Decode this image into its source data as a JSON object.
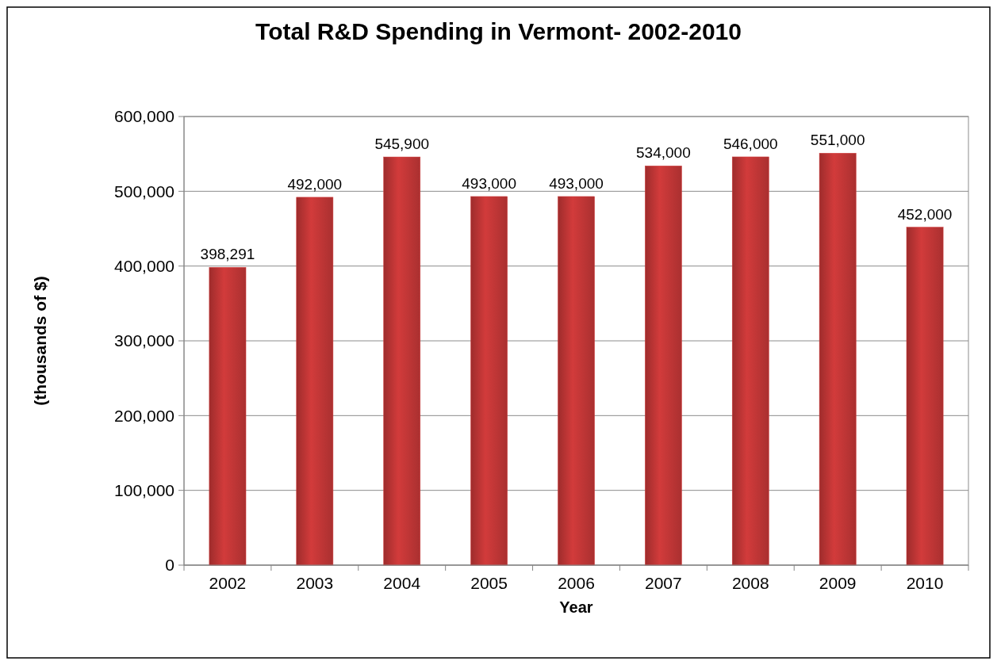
{
  "chart_data": {
    "type": "bar",
    "title": "Total R&D  Spending  in Vermont- 2002-2010",
    "xlabel": "Year",
    "ylabel": "(thousands of $)",
    "categories": [
      "2002",
      "2003",
      "2004",
      "2005",
      "2006",
      "2007",
      "2008",
      "2009",
      "2010"
    ],
    "values": [
      398291,
      492000,
      545900,
      493000,
      493000,
      534000,
      546000,
      551000,
      452000
    ],
    "value_labels": [
      "398,291",
      "492,000",
      "545,900",
      "493,000",
      "493,000",
      "534,000",
      "546,000",
      "551,000",
      "452,000"
    ],
    "color": "#d23b3b",
    "ylim": [
      0,
      600000
    ],
    "yticks": [
      {
        "value": 0,
        "label": "0"
      },
      {
        "value": 100000,
        "label": "100,000"
      },
      {
        "value": 200000,
        "label": "200,000"
      },
      {
        "value": 300000,
        "label": "300,000"
      },
      {
        "value": 400000,
        "label": "400,000"
      },
      {
        "value": 500000,
        "label": "500,000"
      },
      {
        "value": 600000,
        "label": "600,000"
      }
    ],
    "grid": "y"
  }
}
